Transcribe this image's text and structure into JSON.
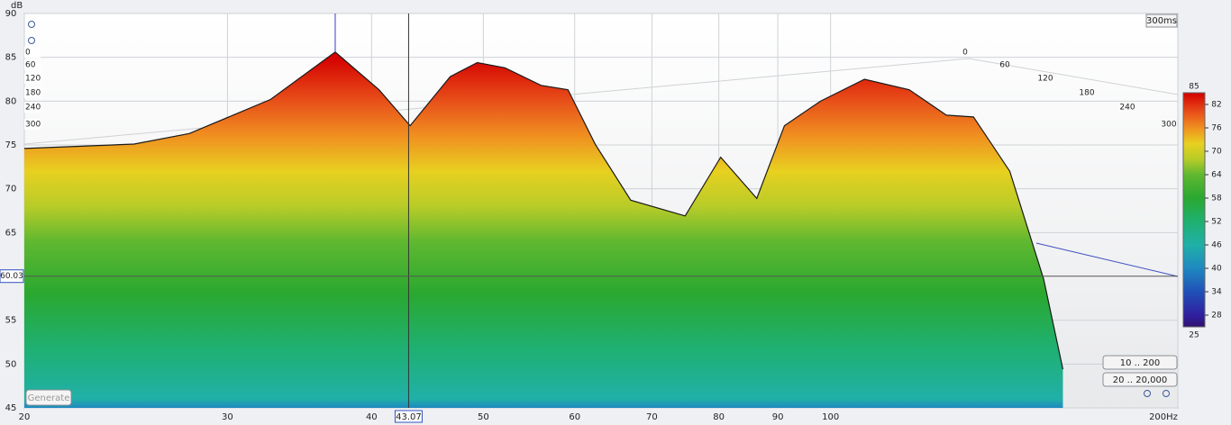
{
  "chart_data": {
    "type": "area",
    "y_label": "dB",
    "x": [
      20,
      24.9,
      27.8,
      32.7,
      37.2,
      40.6,
      43.2,
      46.8,
      49.4,
      52.2,
      56.1,
      59.2,
      62.5,
      67.1,
      74.8,
      80.3,
      86.3,
      91.2,
      98,
      107,
      117,
      126,
      133,
      143,
      153,
      159
    ],
    "values": [
      74.6,
      75.1,
      76.3,
      80.2,
      85.6,
      81.3,
      77.2,
      82.8,
      84.4,
      83.8,
      81.8,
      81.3,
      75.1,
      68.7,
      66.9,
      73.6,
      68.9,
      77.2,
      80.0,
      82.5,
      81.3,
      78.4,
      78.2,
      72.0,
      59.7,
      49.4
    ],
    "xlim": [
      20,
      200
    ],
    "ylim": [
      45,
      90
    ],
    "log_x": true,
    "grid": true,
    "xticks": [
      20,
      30,
      40,
      50,
      60,
      70,
      80,
      90,
      100,
      {
        "value": 200,
        "label": "200Hz"
      }
    ],
    "yticks": [
      90,
      85,
      80,
      75,
      70,
      65,
      55,
      50,
      45
    ],
    "cursor": {
      "x": 43.07,
      "y": 60.03,
      "peak_x": 37.2
    },
    "time_labels": [
      0,
      60,
      120,
      180,
      240,
      300
    ],
    "time_range": "300ms",
    "colorbar": {
      "lim": [
        25,
        85
      ],
      "ticks": [
        85,
        82,
        76,
        70,
        64,
        58,
        52,
        46,
        40,
        34,
        28,
        25
      ],
      "stops": [
        {
          "value": 85,
          "color": "#d40000"
        },
        {
          "value": 80,
          "color": "#e8501a"
        },
        {
          "value": 76,
          "color": "#f09020"
        },
        {
          "value": 72,
          "color": "#e8d020"
        },
        {
          "value": 68,
          "color": "#b8cc28"
        },
        {
          "value": 64,
          "color": "#60b830"
        },
        {
          "value": 58,
          "color": "#2aa830"
        },
        {
          "value": 52,
          "color": "#1fb070"
        },
        {
          "value": 46,
          "color": "#20b0a8"
        },
        {
          "value": 40,
          "color": "#1f88c0"
        },
        {
          "value": 34,
          "color": "#2050b8"
        },
        {
          "value": 28,
          "color": "#3020a0"
        },
        {
          "value": 25,
          "color": "#301070"
        }
      ]
    },
    "buttons": [
      "Generate",
      "10 .. 200",
      "20 .. 20,000"
    ]
  }
}
